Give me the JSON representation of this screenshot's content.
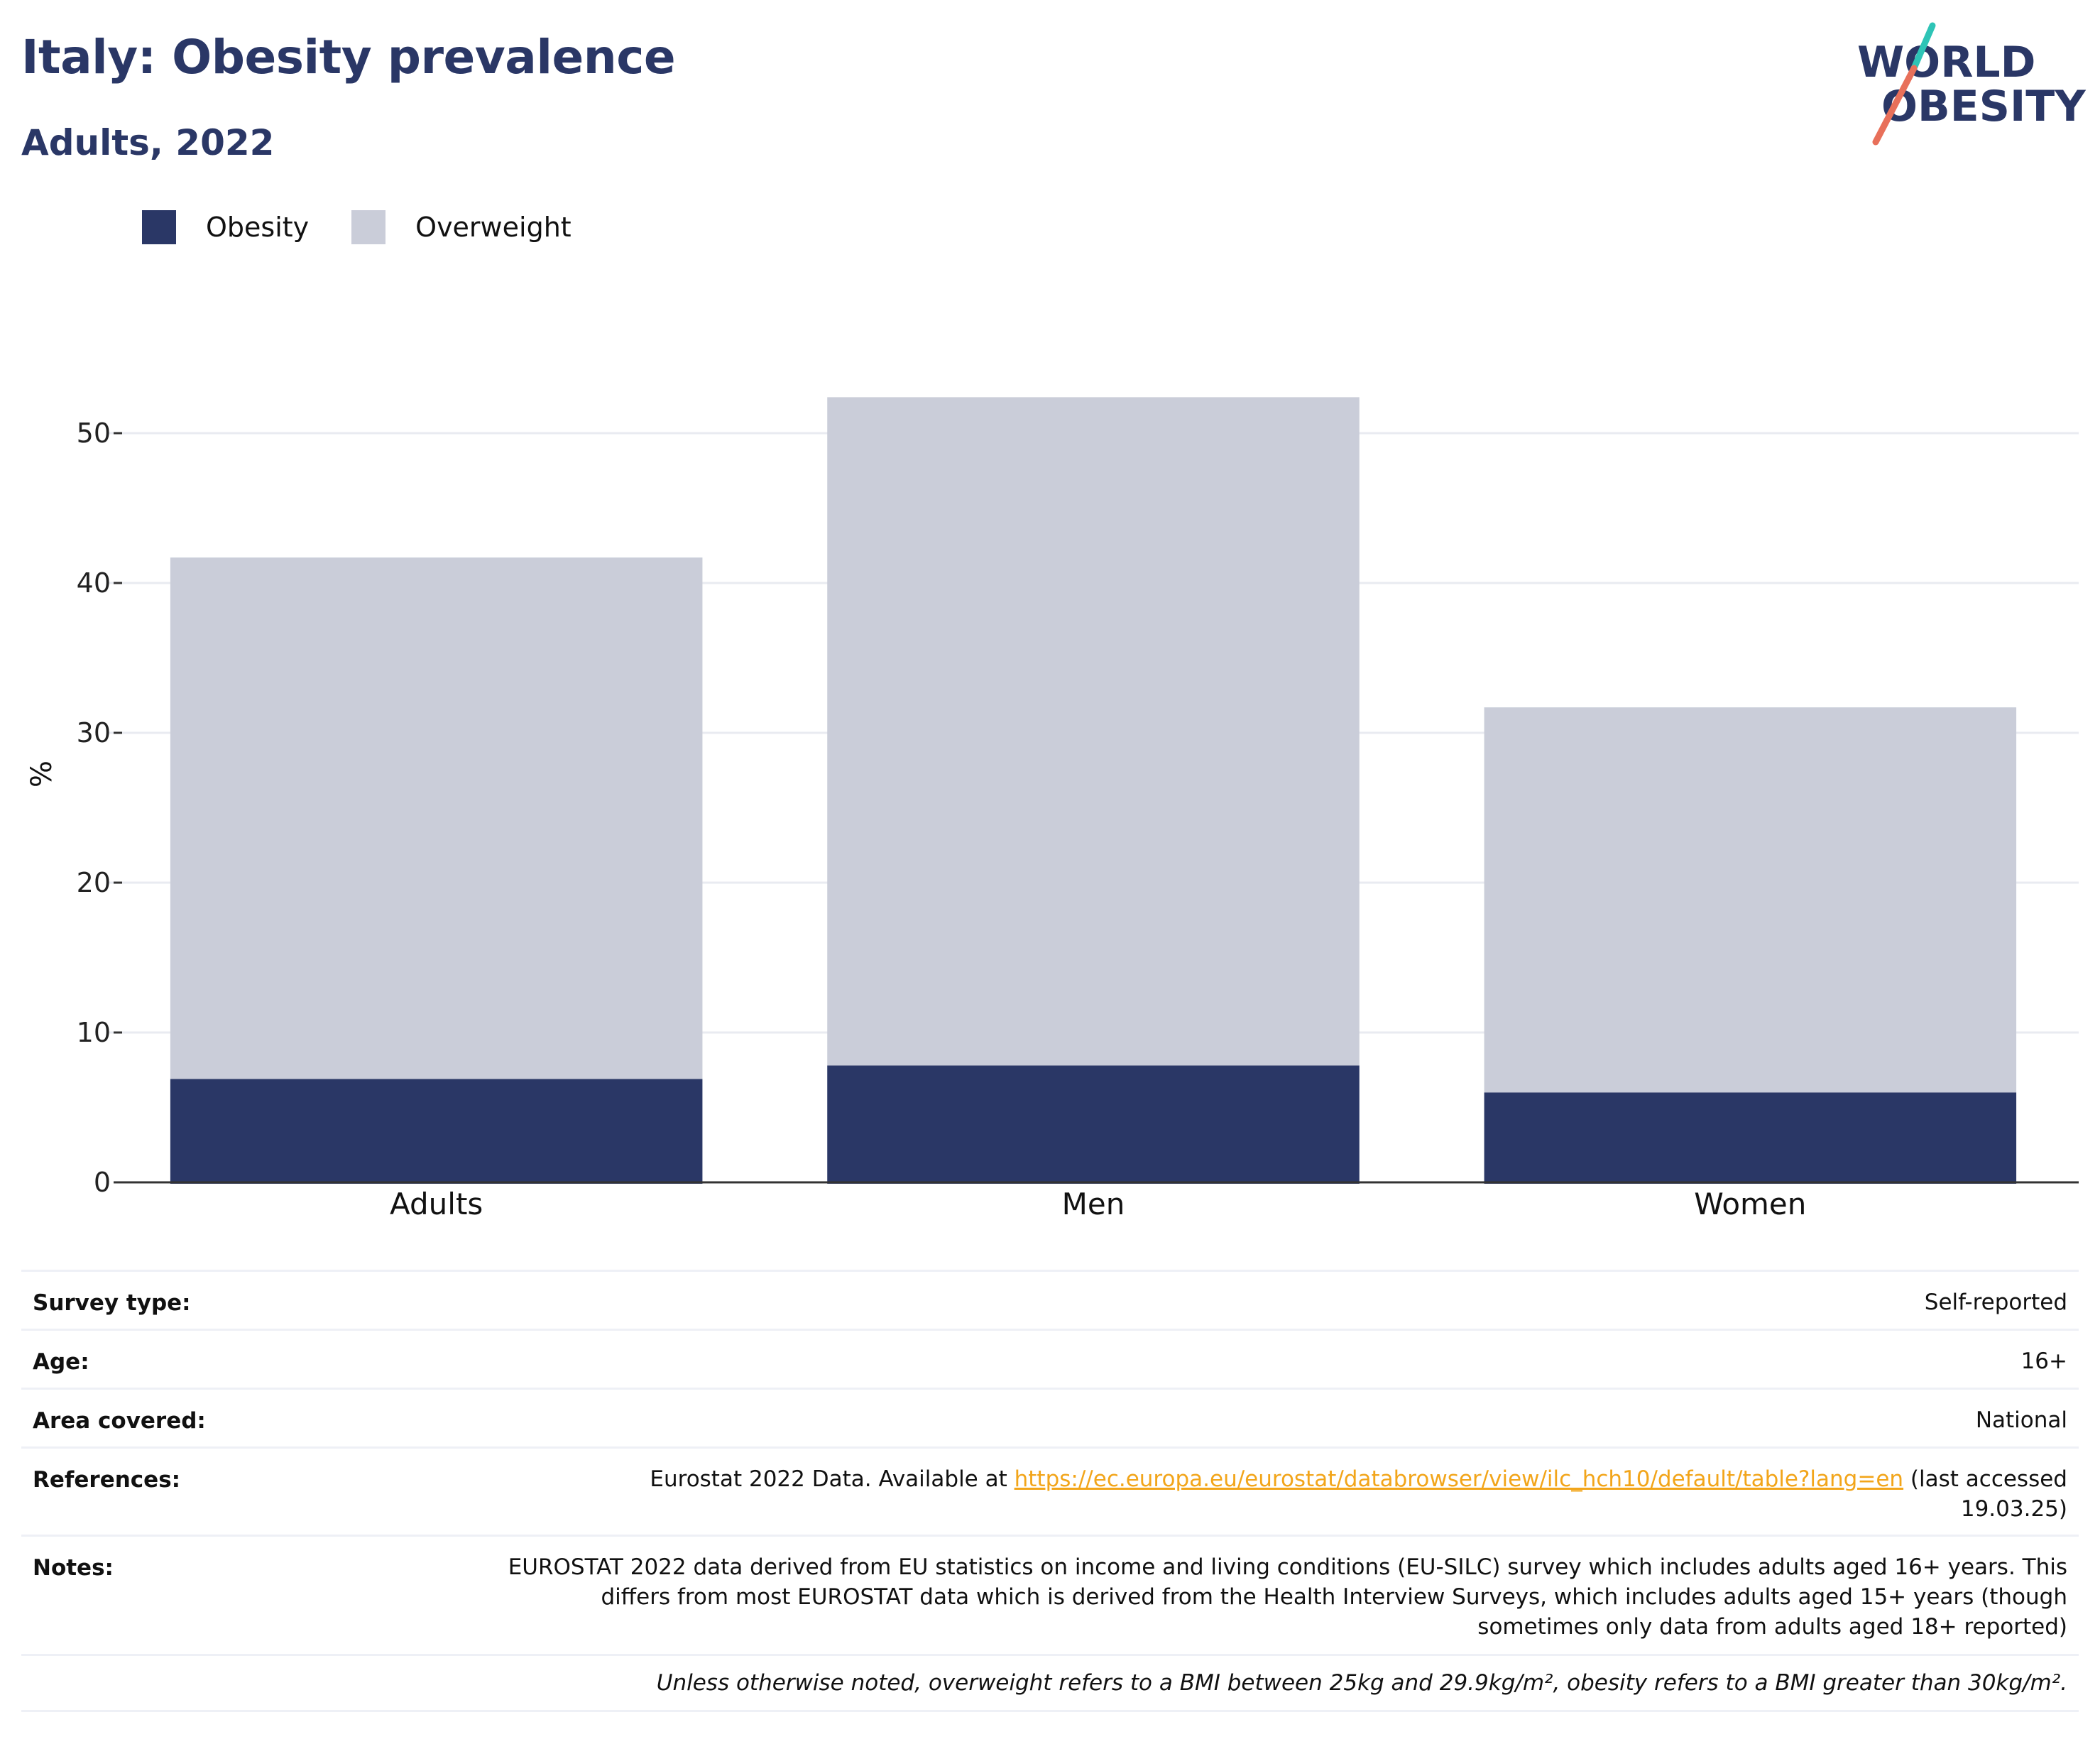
{
  "title": "Italy: Obesity prevalence",
  "subtitle": "Adults, 2022",
  "logo": {
    "line1": "WORLD",
    "line2": "OBESITY",
    "accent_teal": "#2ec4b6",
    "accent_coral": "#e8705a"
  },
  "colors": {
    "obesity": "#2a3766",
    "overweight": "#cacdd9",
    "grid": "#e9ebf1",
    "axis": "#333333"
  },
  "legend": [
    {
      "label": "Obesity",
      "color": "#2a3766"
    },
    {
      "label": "Overweight",
      "color": "#cacdd9"
    }
  ],
  "chart_data": {
    "type": "bar",
    "stacked": true,
    "categories": [
      "Adults",
      "Men",
      "Women"
    ],
    "series": [
      {
        "name": "Obesity",
        "values": [
          6.9,
          7.8,
          6.0
        ]
      },
      {
        "name": "Overweight",
        "values": [
          34.8,
          44.6,
          25.7
        ]
      }
    ],
    "ylabel": "%",
    "ylim": [
      0,
      55
    ],
    "yticks": [
      0,
      10,
      20,
      30,
      40,
      50
    ],
    "grid": true,
    "legend_position": "top-left"
  },
  "meta": {
    "survey_type": {
      "key": "Survey type:",
      "value": "Self-reported"
    },
    "age": {
      "key": "Age:",
      "value": "16+"
    },
    "area": {
      "key": "Area covered:",
      "value": "National"
    },
    "references": {
      "key": "References:",
      "prefix": "Eurostat 2022 Data. Available at ",
      "link": "https://ec.europa.eu/eurostat/databrowser/view/ilc_hch10/default/table?lang=en",
      "suffix": " (last accessed 19.03.25)"
    },
    "notes": {
      "key": "Notes:",
      "value": "EUROSTAT 2022 data derived from EU statistics on income and living conditions (EU-SILC) survey which includes adults aged 16+ years. This differs from most EUROSTAT data which is derived from the Health Interview Surveys, which includes adults aged 15+ years (though sometimes only data from adults aged 18+ reported)"
    },
    "footnote": "Unless otherwise noted, overweight refers to a BMI between 25kg and 29.9kg/m², obesity refers to a BMI greater than 30kg/m²."
  }
}
